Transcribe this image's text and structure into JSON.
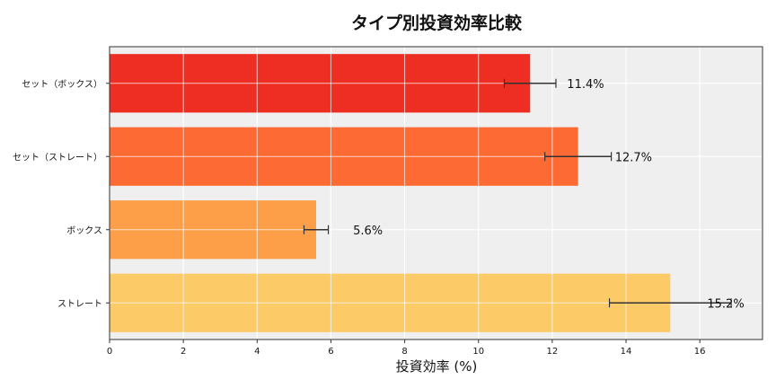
{
  "chart_data": {
    "type": "bar",
    "orientation": "horizontal",
    "title": "タイプ別投資効率比較",
    "xlabel": "投資効率 (%)",
    "ylabel": "",
    "xlim": [
      0,
      17.7
    ],
    "xticks": [
      0,
      2,
      4,
      6,
      8,
      10,
      12,
      14,
      16
    ],
    "grid": true,
    "categories": [
      "セット（ボックス）",
      "セット（ストレート）",
      "ボックス",
      "ストレート"
    ],
    "values": [
      11.4,
      12.7,
      5.6,
      15.2
    ],
    "errors": [
      0.7,
      0.9,
      0.33,
      1.65
    ],
    "data_labels": [
      "11.4%",
      "12.7%",
      "5.6%",
      "15.2%"
    ],
    "colors": [
      "#ee2e22",
      "#fd6a33",
      "#fd9e48",
      "#fdca68"
    ],
    "background": "#efefef"
  }
}
